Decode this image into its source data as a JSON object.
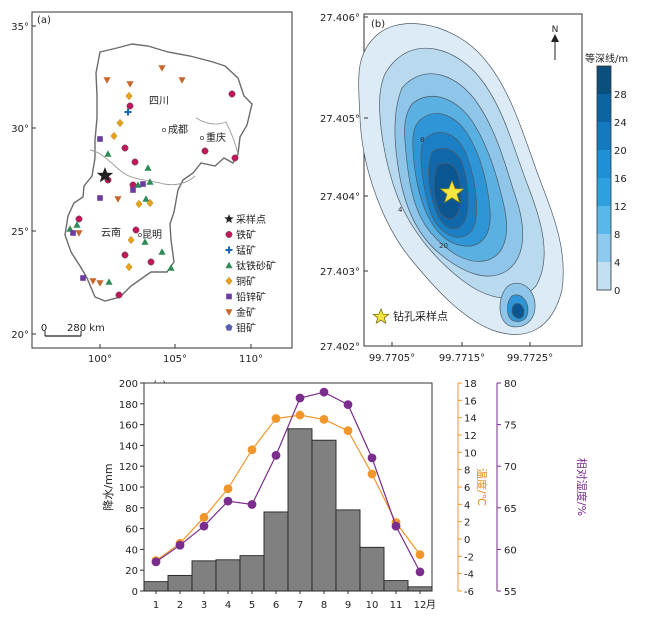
{
  "chart_data": [
    {
      "panel": "(a)",
      "type": "map",
      "y_ticks": [
        "35°",
        "30°",
        "25°",
        "20°"
      ],
      "x_ticks": [
        "100°",
        "105°",
        "110°"
      ],
      "region_labels": [
        "四川",
        "成都",
        "重庆",
        "云南",
        "昆明"
      ],
      "scale_bar": {
        "start": "0",
        "label": "280 km"
      },
      "legend": [
        {
          "label": "采样点",
          "symbol": "star",
          "color": "#222222"
        },
        {
          "label": "铁矿",
          "symbol": "circle",
          "color": "#c2185b"
        },
        {
          "label": "锰矿",
          "symbol": "plus",
          "color": "#1565c0"
        },
        {
          "label": "钛铁砂矿",
          "symbol": "triangle",
          "color": "#2e8b57"
        },
        {
          "label": "铜矿",
          "symbol": "diamond",
          "color": "#e8a31a"
        },
        {
          "label": "铅锌矿",
          "symbol": "square",
          "color": "#6a3d9a"
        },
        {
          "label": "金矿",
          "symbol": "triangle-down",
          "color": "#c8672b"
        },
        {
          "label": "钼矿",
          "symbol": "pentagon",
          "color": "#5c5fb0"
        }
      ]
    },
    {
      "panel": "(b)",
      "type": "contour",
      "y_ticks": [
        "27.406°",
        "27.405°",
        "27.404°",
        "27.403°",
        "27.402°"
      ],
      "x_ticks": [
        "99.7705°",
        "99.7715°",
        "99.7725°"
      ],
      "north_label": "N",
      "colorbar_title": "等深线/m",
      "colorbar_ticks": [
        28,
        24,
        20,
        16,
        12,
        8,
        4,
        0
      ],
      "colorbar_colors": [
        "#0b4f7c",
        "#0d64a3",
        "#1579bf",
        "#1f8fd6",
        "#2ea0e0",
        "#5ab7ea",
        "#8ec9ee",
        "#c4dff1"
      ],
      "contour_labels": [
        "4",
        "8",
        "20"
      ],
      "marker_label": "钻孔采样点"
    },
    {
      "panel": "(c)",
      "type": "bar-line",
      "categories": [
        "1",
        "2",
        "3",
        "4",
        "5",
        "6",
        "7",
        "8",
        "9",
        "10",
        "11",
        "12"
      ],
      "x_unit": "月",
      "precipitation": {
        "ylabel": "降水/mm",
        "ylim": [
          0,
          200
        ],
        "ticks": [
          0,
          20,
          40,
          60,
          80,
          100,
          120,
          140,
          160,
          180,
          200
        ],
        "values": [
          9,
          15,
          29,
          30,
          34,
          76,
          156,
          145,
          78,
          42,
          10,
          4
        ],
        "color": "#808080"
      },
      "temperature": {
        "ylabel": "温度/℃",
        "ylim": [
          -6,
          18
        ],
        "ticks": [
          -6,
          -4,
          -2,
          0,
          2,
          4,
          6,
          8,
          10,
          12,
          14,
          16,
          18
        ],
        "values": [
          -2.5,
          -0.5,
          2.5,
          5.8,
          10.3,
          13.9,
          14.3,
          13.8,
          12.5,
          7.5,
          1.9,
          -1.8
        ],
        "color": "#f0962a"
      },
      "humidity": {
        "ylabel": "相对湿度/%",
        "ylim": [
          55,
          80
        ],
        "ticks": [
          55,
          60,
          65,
          70,
          75,
          80
        ],
        "values": [
          58.5,
          60.5,
          62.8,
          65.8,
          65.4,
          71.3,
          78.2,
          78.9,
          77.4,
          71.0,
          62.8,
          57.3
        ],
        "color": "#7b2d8e"
      }
    }
  ]
}
